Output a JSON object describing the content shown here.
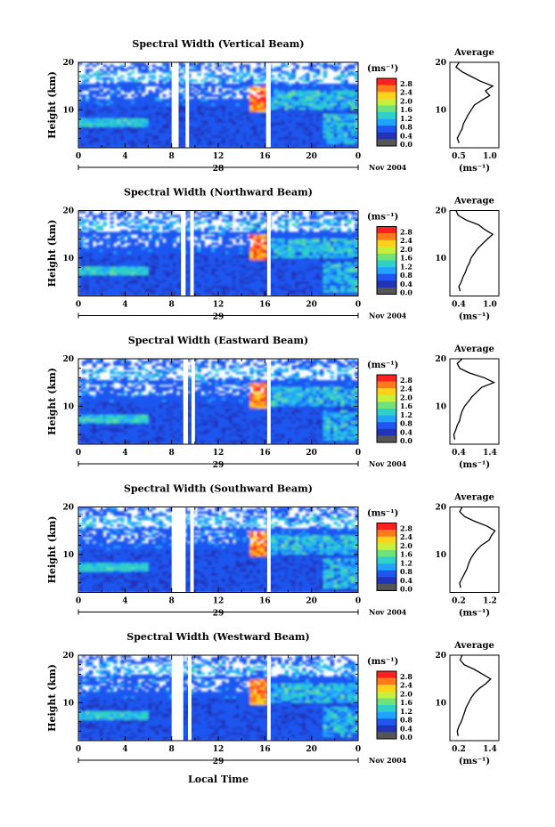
{
  "figure": {
    "shared_xlabel": "Local Time",
    "ylabel": "Height (km)",
    "x_ticks": [
      "0",
      "4",
      "8",
      "12",
      "16",
      "20",
      "0"
    ],
    "y_ticks": [
      "20",
      "10"
    ],
    "colorbar_unit": "(ms⁻¹)",
    "colorbar_ticks": [
      "2.8",
      "2.4",
      "2.0",
      "1.6",
      "1.2",
      "0.8",
      "0.4",
      "0.0"
    ],
    "colorbar_colors": [
      "#ff2020",
      "#ff7a1a",
      "#ffd21a",
      "#c8f03a",
      "#6fe27a",
      "#2ed0c8",
      "#20a4ff",
      "#1f56f0",
      "#2233b8",
      "#555555"
    ],
    "average_title": "Average",
    "average_xlabel": "(ms⁻¹)",
    "date_label": "Nov 2004"
  },
  "chart_data": [
    {
      "type": "heatmap",
      "title": "Spectral Width (Vertical Beam)",
      "xlabel": "Local Time",
      "ylabel": "Height (km)",
      "xlim": [
        0,
        24
      ],
      "ylim": [
        2,
        20
      ],
      "colorbar_range": [
        0.0,
        3.0
      ],
      "day_label": "28",
      "data_gaps_hours": [
        [
          8.0,
          8.6
        ],
        [
          9.2,
          9.5
        ],
        [
          16.1,
          16.5
        ]
      ],
      "average_profile": {
        "xlim": [
          0.4,
          1.2
        ],
        "xticks": [
          "0.5",
          "1.0"
        ],
        "height_km": [
          3,
          4,
          5,
          6,
          7,
          8,
          9,
          10,
          11,
          12,
          13,
          14,
          15,
          16,
          17,
          18,
          19,
          20
        ],
        "width_ms": [
          0.55,
          0.52,
          0.56,
          0.6,
          0.62,
          0.66,
          0.7,
          0.75,
          0.8,
          0.92,
          1.05,
          0.98,
          1.1,
          0.9,
          0.75,
          0.6,
          0.5,
          0.55
        ]
      }
    },
    {
      "type": "heatmap",
      "title": "Spectral Width (Northward Beam)",
      "xlabel": "Local Time",
      "ylabel": "Height (km)",
      "xlim": [
        0,
        24
      ],
      "ylim": [
        2,
        20
      ],
      "colorbar_range": [
        0.0,
        3.0
      ],
      "day_label": "29",
      "data_gaps_hours": [
        [
          8.8,
          9.2
        ],
        [
          9.6,
          9.9
        ],
        [
          16.2,
          16.5
        ]
      ],
      "average_profile": {
        "xlim": [
          0.2,
          1.4
        ],
        "xticks": [
          "0.4",
          "1.0"
        ],
        "height_km": [
          3,
          4,
          5,
          6,
          7,
          8,
          9,
          10,
          11,
          12,
          13,
          14,
          15,
          16,
          17,
          18,
          19,
          20
        ],
        "width_ms": [
          0.45,
          0.42,
          0.48,
          0.52,
          0.58,
          0.62,
          0.68,
          0.72,
          0.8,
          0.88,
          1.0,
          1.12,
          1.25,
          1.05,
          0.9,
          0.6,
          0.4,
          0.35
        ]
      }
    },
    {
      "type": "heatmap",
      "title": "Spectral Width (Eastward Beam)",
      "xlabel": "Local Time",
      "ylabel": "Height (km)",
      "xlim": [
        0,
        24
      ],
      "ylim": [
        2,
        20
      ],
      "colorbar_range": [
        0.0,
        3.0
      ],
      "day_label": "29",
      "data_gaps_hours": [
        [
          9.0,
          9.4
        ],
        [
          9.7,
          10.0
        ],
        [
          16.2,
          16.5
        ]
      ],
      "average_profile": {
        "xlim": [
          0.4,
          1.4
        ],
        "xticks": [
          "0.4",
          "1.4"
        ],
        "height_km": [
          3,
          4,
          5,
          6,
          7,
          8,
          9,
          10,
          11,
          12,
          13,
          14,
          15,
          16,
          17,
          18,
          19,
          20
        ],
        "width_ms": [
          0.5,
          0.48,
          0.52,
          0.55,
          0.6,
          0.62,
          0.65,
          0.7,
          0.78,
          0.85,
          0.95,
          1.05,
          1.3,
          1.1,
          0.8,
          0.6,
          0.55,
          0.65
        ]
      }
    },
    {
      "type": "heatmap",
      "title": "Spectral Width (Southward Beam)",
      "xlabel": "Local Time",
      "ylabel": "Height (km)",
      "xlim": [
        0,
        24
      ],
      "ylim": [
        2,
        20
      ],
      "colorbar_range": [
        0.0,
        3.0
      ],
      "day_label": "29",
      "data_gaps_hours": [
        [
          8.0,
          9.2
        ],
        [
          9.6,
          9.9
        ],
        [
          16.2,
          16.5
        ]
      ],
      "average_profile": {
        "xlim": [
          0.2,
          1.2
        ],
        "xticks": [
          "0.2",
          "1.2"
        ],
        "height_km": [
          3,
          4,
          5,
          6,
          7,
          8,
          9,
          10,
          11,
          12,
          13,
          14,
          15,
          16,
          17,
          18,
          19,
          20
        ],
        "width_ms": [
          0.42,
          0.4,
          0.45,
          0.5,
          0.55,
          0.58,
          0.62,
          0.68,
          0.75,
          0.85,
          1.0,
          1.05,
          1.12,
          0.95,
          0.7,
          0.5,
          0.4,
          0.45
        ]
      }
    },
    {
      "type": "heatmap",
      "title": "Spectral Width (Westward Beam)",
      "xlabel": "Local Time",
      "ylabel": "Height (km)",
      "xlim": [
        0,
        24
      ],
      "ylim": [
        2,
        20
      ],
      "colorbar_range": [
        0.0,
        3.0
      ],
      "day_label": "29",
      "data_gaps_hours": [
        [
          8.0,
          9.0
        ],
        [
          9.4,
          9.7
        ],
        [
          16.2,
          16.5
        ]
      ],
      "average_profile": {
        "xlim": [
          0.2,
          1.4
        ],
        "xticks": [
          "0.2",
          "1.4"
        ],
        "height_km": [
          3,
          4,
          5,
          6,
          7,
          8,
          9,
          10,
          11,
          12,
          13,
          14,
          15,
          16,
          17,
          18,
          19,
          20
        ],
        "width_ms": [
          0.4,
          0.38,
          0.42,
          0.48,
          0.52,
          0.56,
          0.6,
          0.66,
          0.72,
          0.8,
          0.92,
          1.08,
          1.2,
          1.0,
          0.8,
          0.55,
          0.45,
          0.5
        ]
      }
    }
  ]
}
